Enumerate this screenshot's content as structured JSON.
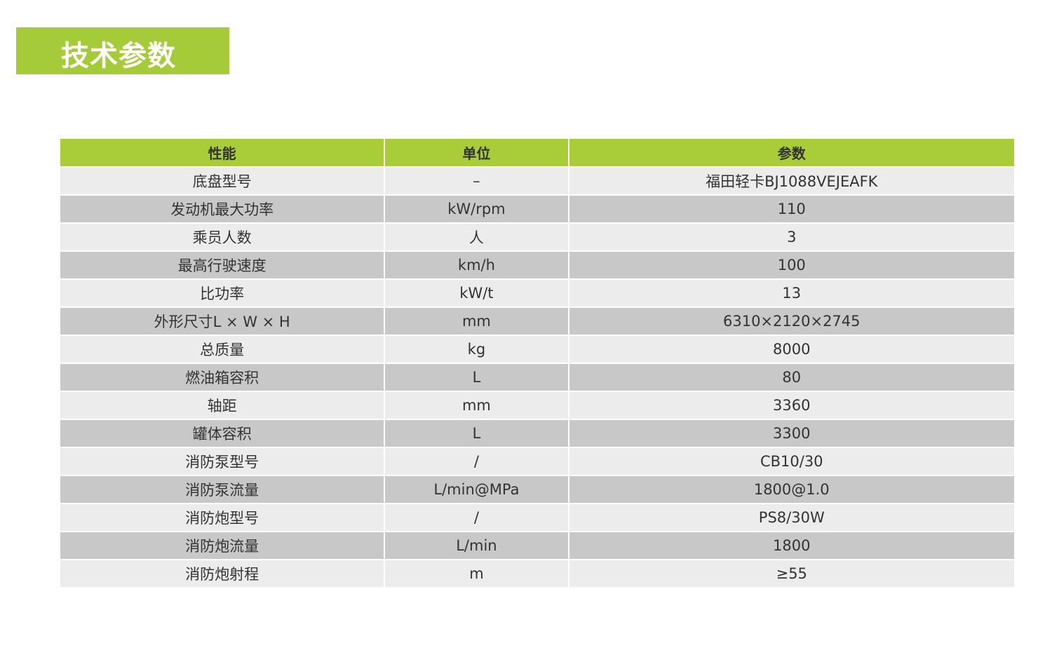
{
  "title": "技术参数",
  "colors": {
    "accent": "#a8cd38",
    "row_light": "#ececec",
    "row_dark": "#c8c8c9"
  },
  "table": {
    "headers": [
      "性能",
      "单位",
      "参数"
    ],
    "rows": [
      [
        "底盘型号",
        "–",
        "福田轻卡BJ1088VEJEAFK"
      ],
      [
        "发动机最大功率",
        "kW/rpm",
        "110"
      ],
      [
        "乘员人数",
        "人",
        "3"
      ],
      [
        "最高行驶速度",
        "km/h",
        "100"
      ],
      [
        "比功率",
        "kW/t",
        "13"
      ],
      [
        "外形尺寸L × W × H",
        "mm",
        "6310×2120×2745"
      ],
      [
        "总质量",
        "kg",
        "8000"
      ],
      [
        "燃油箱容积",
        "L",
        "80"
      ],
      [
        "轴距",
        "mm",
        "3360"
      ],
      [
        "罐体容积",
        "L",
        "3300"
      ],
      [
        "消防泵型号",
        "/",
        "CB10/30"
      ],
      [
        "消防泵流量",
        "L/min@MPa",
        "1800@1.0"
      ],
      [
        "消防炮型号",
        "/",
        "PS8/30W"
      ],
      [
        "消防炮流量",
        "L/min",
        "1800"
      ],
      [
        "消防炮射程",
        "m",
        "≥55"
      ]
    ]
  }
}
